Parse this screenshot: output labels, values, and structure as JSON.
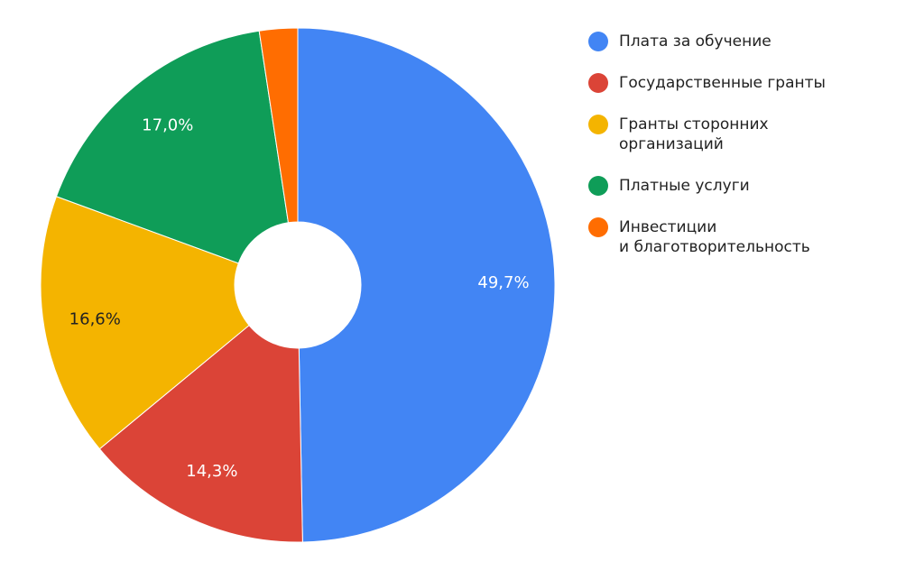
{
  "chart_data": {
    "type": "donut",
    "categories": [
      "Плата за обучение",
      "Государственные гранты",
      "Гранты сторонних\nорганизаций",
      "Платные услуги",
      "Инвестиции\nи благотворительность"
    ],
    "values": [
      49.7,
      14.3,
      16.6,
      17.0,
      2.4
    ],
    "value_labels": [
      "49,7%",
      "14,3%",
      "16,6%",
      "17,0%",
      null
    ],
    "colors": [
      "#4285f4",
      "#db4437",
      "#f4b400",
      "#0f9d58",
      "#ff6d01"
    ]
  }
}
